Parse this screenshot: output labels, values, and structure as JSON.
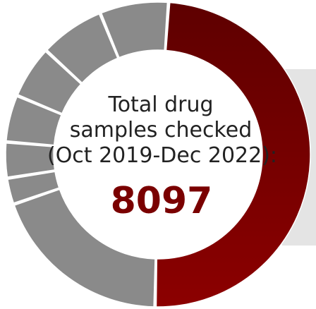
{
  "chart_data": {
    "type": "pie",
    "donut": true,
    "center_label_lines": [
      "Total drug",
      "samples checked",
      "(Oct 2019-Dec 2022):"
    ],
    "center_value": "8097",
    "values": [
      49.2,
      19.4,
      2.8,
      3.8,
      5.0,
      5.6,
      6.9,
      7.3
    ],
    "colors": [
      "#7a0000",
      "#8a8a8a",
      "#8a8a8a",
      "#8a8a8a",
      "#8a8a8a",
      "#8a8a8a",
      "#8a8a8a",
      "#8a8a8a"
    ],
    "highlight_gradient": [
      "#5e0000",
      "#8c0000"
    ],
    "legend": "none"
  }
}
